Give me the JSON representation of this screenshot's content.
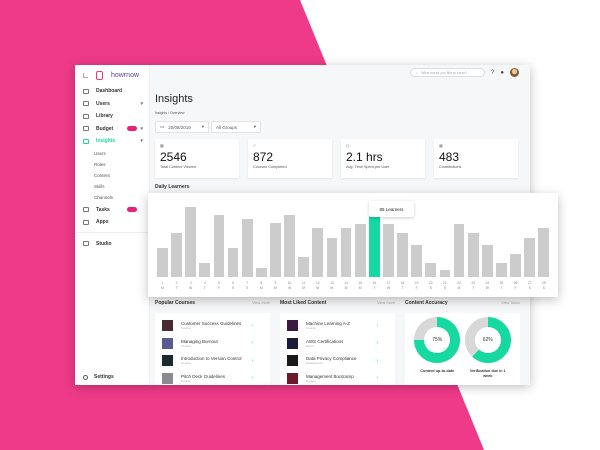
{
  "brand": {
    "name": "howrnow",
    "accent": "#1fd6a0",
    "pink": "#ee3a88"
  },
  "sidebar": {
    "items": [
      {
        "label": "Dashboard",
        "icon": "dashboard-icon"
      },
      {
        "label": "Users",
        "icon": "users-icon",
        "chevron": true
      },
      {
        "label": "Library",
        "icon": "library-icon"
      },
      {
        "label": "Budget",
        "icon": "budget-icon",
        "badge": true,
        "chevron": true
      },
      {
        "label": "Insights",
        "icon": "insights-icon",
        "chevron": true,
        "active": true
      }
    ],
    "sub_items": [
      "Users",
      "Roles",
      "Content",
      "Skills",
      "Channels"
    ],
    "items2": [
      {
        "label": "Tasks",
        "icon": "tasks-icon",
        "badge": true
      },
      {
        "label": "Apps",
        "icon": "apps-icon"
      }
    ],
    "studio": "Studio",
    "settings": "Settings"
  },
  "topbar": {
    "search_placeholder": "What would you like to know?",
    "help": "?",
    "bell": "●"
  },
  "page": {
    "title": "Insights",
    "breadcrumb": "Insights / Overview",
    "date": "20/08/2019",
    "group": "All Groups"
  },
  "stats": [
    {
      "icon": "▦",
      "value": "2546",
      "label": "Total Content Viewed"
    },
    {
      "icon": "✓",
      "value": "872",
      "label": "Courses Completed"
    },
    {
      "icon": "◷",
      "value": "2.1 hrs",
      "label": "Avg. Time Spent per User"
    },
    {
      "icon": "▦",
      "value": "483",
      "label": "Contributions"
    }
  ],
  "daily_learners": {
    "title": "Daily Learners",
    "tooltip": "85 Learners"
  },
  "chart_data": {
    "type": "bar",
    "title": "Daily Learners",
    "categories": [
      "1",
      "2",
      "3",
      "4",
      "5",
      "6",
      "7",
      "8",
      "9",
      "10",
      "11",
      "12",
      "13",
      "14",
      "15",
      "16",
      "17",
      "18",
      "19",
      "20",
      "21",
      "22",
      "23",
      "24",
      "25",
      "26",
      "27",
      "28"
    ],
    "day_letters": [
      "M",
      "T",
      "W",
      "T",
      "F",
      "S",
      "S",
      "M",
      "M",
      "W",
      "M",
      "M",
      "M",
      "M",
      "M",
      "T",
      "W",
      "T",
      "F",
      "S",
      "S",
      "M",
      "T",
      "W",
      "T",
      "F",
      "S",
      "S"
    ],
    "values": [
      35,
      53,
      85,
      17,
      76,
      35,
      71,
      11,
      66,
      76,
      24,
      60,
      48,
      60,
      64,
      85,
      64,
      53,
      39,
      17,
      8,
      64,
      53,
      39,
      17,
      28,
      48,
      60
    ],
    "highlight_index": 15,
    "highlight_label": "85 Learners",
    "ylim": [
      0,
      90
    ],
    "grid": false
  },
  "popular_courses": {
    "title": "Popular Courses",
    "view_more": "View more",
    "items": [
      {
        "title": "Customer Success Guidelines",
        "type": "Course",
        "color": "#4a2a30"
      },
      {
        "title": "Managing Burnout",
        "type": "Course",
        "color": "#5a5a90"
      },
      {
        "title": "Introduction to Version Control",
        "type": "Course",
        "color": "#1a2a30"
      },
      {
        "title": "Pitch Deck Guidelines",
        "type": "Course",
        "color": "#8a8a90"
      }
    ]
  },
  "most_liked": {
    "title": "Most Liked Content",
    "view_more": "View more",
    "items": [
      {
        "title": "Machine Learning A-Z",
        "type": "Course",
        "color": "#3a1a40"
      },
      {
        "title": "AWS Certifications",
        "type": "Event",
        "color": "#1a1a3a"
      },
      {
        "title": "Data Privacy Compliance",
        "type": "Assessment",
        "color": "#1a1a1a"
      },
      {
        "title": "Management Bootcamp",
        "type": "Nugget",
        "color": "#6a1a2a"
      }
    ]
  },
  "accuracy": {
    "title": "Content Accuracy",
    "view_more": "View Tasks",
    "donuts": [
      {
        "pct": 75,
        "label": "75%",
        "caption": "Content up-to-date"
      },
      {
        "pct": 62,
        "label": "62%",
        "caption": "Verification due in 1 week"
      }
    ]
  }
}
